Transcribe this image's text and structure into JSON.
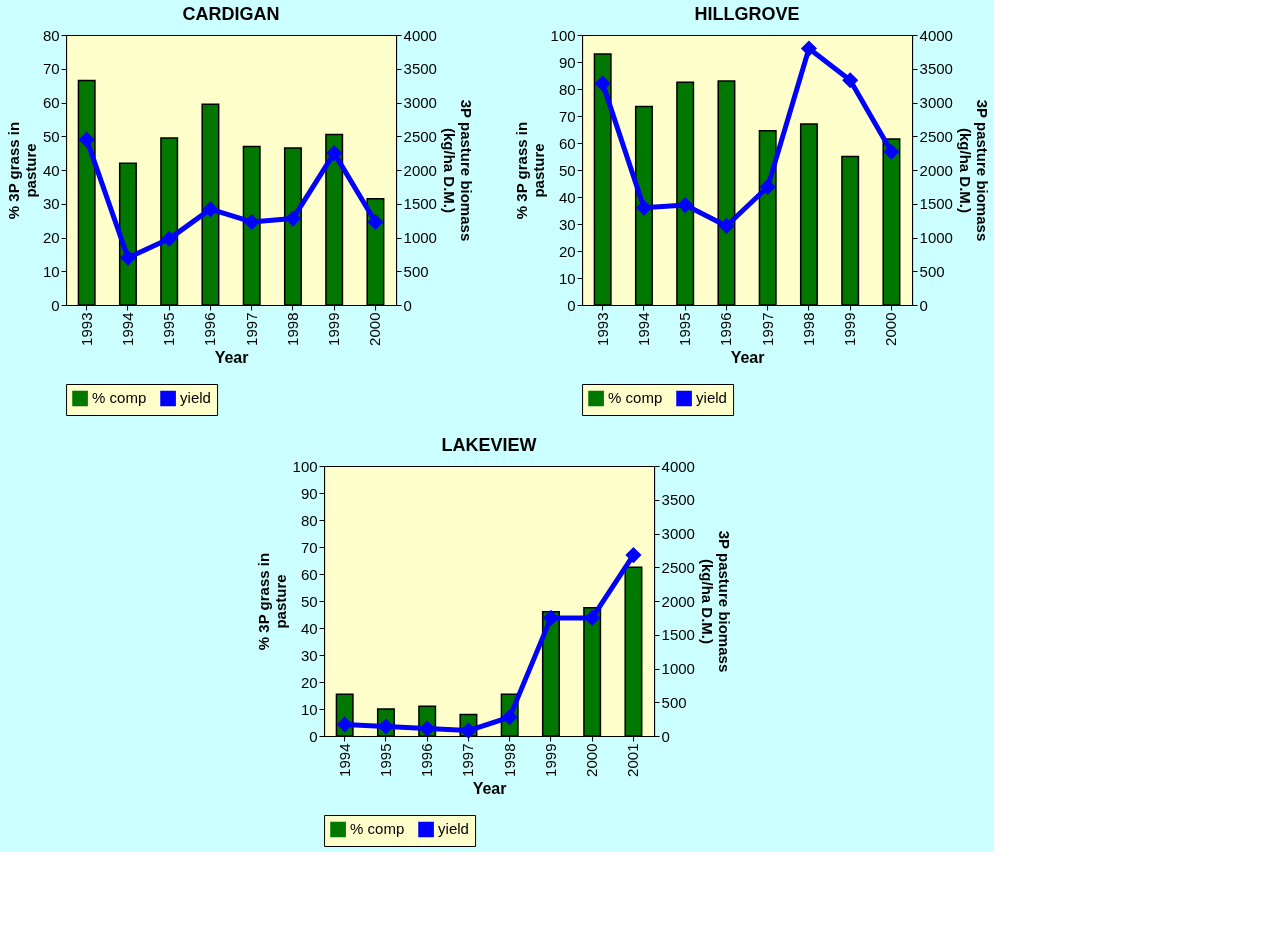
{
  "chart_data": [
    {
      "type": "bar",
      "title": "CARDIGAN",
      "xlabel": "Year",
      "ylabel": "% 3P grass in\npasture",
      "y2label": "3P pasture biomass\n(kg/ha D.M.)",
      "categories": [
        "1993",
        "1994",
        "1995",
        "1996",
        "1997",
        "1998",
        "1999",
        "2000"
      ],
      "ylim": [
        0,
        80
      ],
      "yticks": [
        0,
        10,
        20,
        30,
        40,
        50,
        60,
        70,
        80
      ],
      "y2lim": [
        0,
        4000
      ],
      "y2ticks": [
        0,
        500,
        1000,
        1500,
        2000,
        2500,
        3000,
        3500,
        4000
      ],
      "legend": "bottom",
      "marker": "diamond",
      "series": [
        {
          "name": "% comp",
          "color": "#007800",
          "values": [
            66.5,
            42,
            49.5,
            59.5,
            47,
            46.5,
            50.5,
            31.5
          ]
        },
        {
          "name": "yield",
          "type": "line",
          "axis": "y2",
          "color": "#0000ff",
          "values": [
            2450,
            700,
            980,
            1420,
            1230,
            1280,
            2250,
            1230
          ]
        }
      ]
    },
    {
      "type": "bar",
      "title": "HILLGROVE",
      "xlabel": "Year",
      "ylabel": "% 3P grass in\npasture",
      "y2label": "3P pasture biomass\n(kg/ha D.M.)",
      "categories": [
        "1993",
        "1994",
        "1995",
        "1996",
        "1997",
        "1998",
        "1999",
        "2000"
      ],
      "ylim": [
        0,
        100
      ],
      "yticks": [
        0,
        10,
        20,
        30,
        40,
        50,
        60,
        70,
        80,
        90,
        100
      ],
      "y2lim": [
        0,
        4000
      ],
      "y2ticks": [
        0,
        500,
        1000,
        1500,
        2000,
        2500,
        3000,
        3500,
        4000
      ],
      "legend": "bottom",
      "marker": "diamond",
      "series": [
        {
          "name": "% comp",
          "color": "#007800",
          "values": [
            93,
            73.5,
            82.5,
            83,
            64.5,
            67,
            55,
            61.5
          ]
        },
        {
          "name": "yield",
          "type": "line",
          "axis": "y2",
          "color": "#0000ff",
          "values": [
            3280,
            1440,
            1480,
            1170,
            1750,
            3800,
            3330,
            2270
          ]
        }
      ]
    },
    {
      "type": "bar",
      "title": "LAKEVIEW",
      "xlabel": "Year",
      "ylabel": "% 3P grass in\npasture",
      "y2label": "3P pasture biomass\n(kg/ha D.M.)",
      "categories": [
        "1994",
        "1995",
        "1996",
        "1997",
        "1998",
        "1999",
        "2000",
        "2001"
      ],
      "ylim": [
        0,
        100
      ],
      "yticks": [
        0,
        10,
        20,
        30,
        40,
        50,
        60,
        70,
        80,
        90,
        100
      ],
      "y2lim": [
        0,
        4000
      ],
      "y2ticks": [
        0,
        500,
        1000,
        1500,
        2000,
        2500,
        3000,
        3500,
        4000
      ],
      "legend": "bottom",
      "marker": "diamond",
      "series": [
        {
          "name": "% comp",
          "color": "#007800",
          "values": [
            15.5,
            10,
            11,
            8,
            15.5,
            46,
            47.5,
            62.5
          ]
        },
        {
          "name": "yield",
          "type": "line",
          "axis": "y2",
          "color": "#0000ff",
          "values": [
            170,
            140,
            110,
            80,
            280,
            1750,
            1750,
            2680
          ]
        }
      ]
    }
  ]
}
